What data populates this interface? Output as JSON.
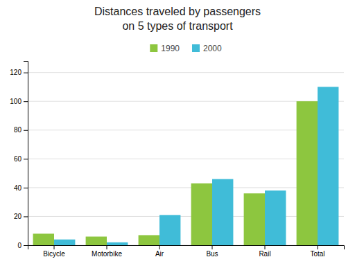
{
  "chart_data": {
    "type": "bar",
    "title": "Distances traveled by passengers",
    "subtitle": "on 5 types of transport",
    "categories": [
      "Bicycle",
      "Motorbike",
      "Air",
      "Bus",
      "Rail",
      "Total"
    ],
    "series": [
      {
        "name": "1990",
        "color": "#8dc63f",
        "values": [
          8,
          6,
          7,
          43,
          36,
          100
        ]
      },
      {
        "name": "2000",
        "color": "#40bcd8",
        "values": [
          4,
          2,
          21,
          46,
          38,
          110
        ]
      }
    ],
    "ylim": [
      0,
      128
    ],
    "yticks": [
      0,
      20,
      40,
      60,
      80,
      100,
      120
    ],
    "grid": true,
    "legend": "top"
  }
}
